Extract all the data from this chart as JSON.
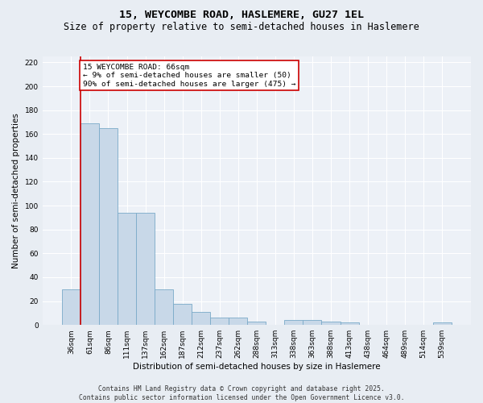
{
  "title": "15, WEYCOMBE ROAD, HASLEMERE, GU27 1EL",
  "subtitle": "Size of property relative to semi-detached houses in Haslemere",
  "xlabel": "Distribution of semi-detached houses by size in Haslemere",
  "ylabel": "Number of semi-detached properties",
  "bar_color": "#c8d8e8",
  "bar_edge_color": "#7aaac8",
  "annotation_line_color": "#cc0000",
  "annotation_box_color": "#cc0000",
  "annotation_text": "15 WEYCOMBE ROAD: 66sqm\n← 9% of semi-detached houses are smaller (50)\n90% of semi-detached houses are larger (475) →",
  "categories": [
    "36sqm",
    "61sqm",
    "86sqm",
    "111sqm",
    "137sqm",
    "162sqm",
    "187sqm",
    "212sqm",
    "237sqm",
    "262sqm",
    "288sqm",
    "313sqm",
    "338sqm",
    "363sqm",
    "388sqm",
    "413sqm",
    "438sqm",
    "464sqm",
    "489sqm",
    "514sqm",
    "539sqm"
  ],
  "values": [
    30,
    169,
    165,
    94,
    94,
    30,
    18,
    11,
    6,
    6,
    3,
    0,
    4,
    4,
    3,
    2,
    0,
    0,
    0,
    0,
    2
  ],
  "ylim": [
    0,
    225
  ],
  "yticks": [
    0,
    20,
    40,
    60,
    80,
    100,
    120,
    140,
    160,
    180,
    200,
    220
  ],
  "bg_color": "#e8edf3",
  "plot_bg_color": "#edf1f7",
  "grid_color": "#ffffff",
  "footer_text": "Contains HM Land Registry data © Crown copyright and database right 2025.\nContains public sector information licensed under the Open Government Licence v3.0.",
  "title_fontsize": 9.5,
  "subtitle_fontsize": 8.5,
  "annotation_fontsize": 6.8,
  "tick_fontsize": 6.5,
  "label_fontsize": 7.5,
  "footer_fontsize": 5.8
}
